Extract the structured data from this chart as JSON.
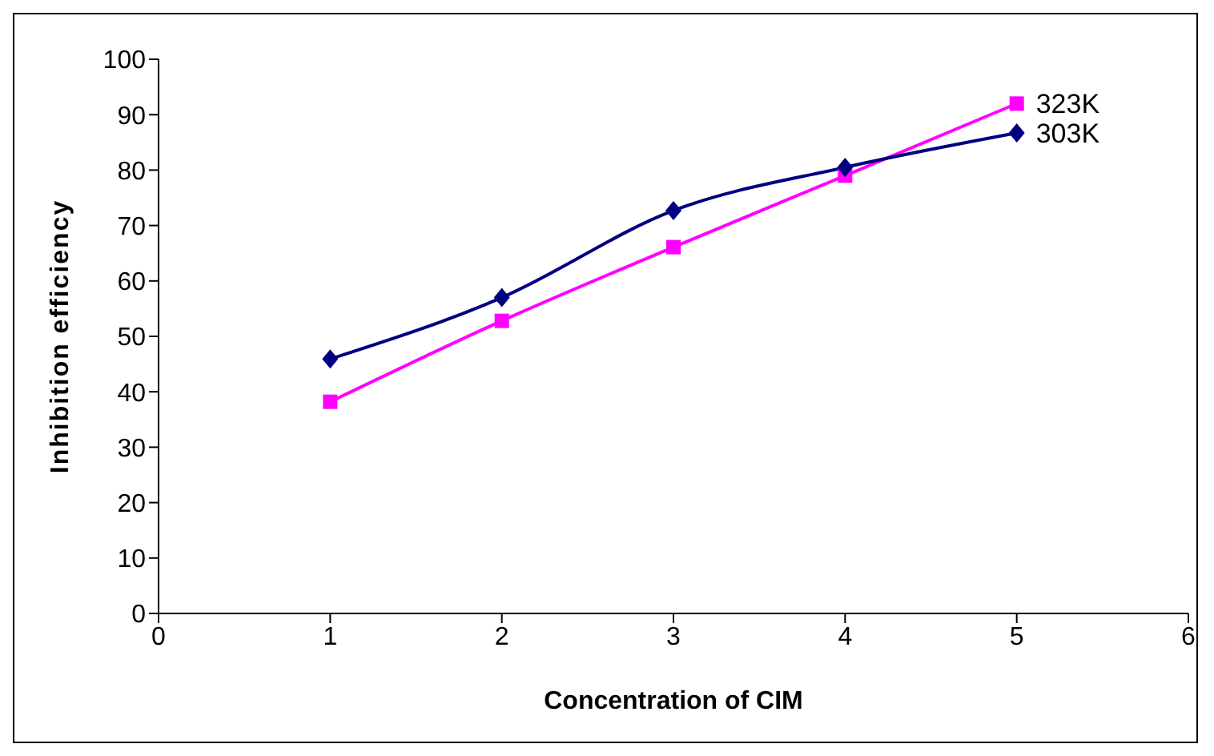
{
  "chart_data": {
    "type": "line",
    "xlabel": "Concentration of CIM",
    "ylabel": "Inhibition efficiency",
    "x": [
      1,
      2,
      3,
      4,
      5
    ],
    "series": [
      {
        "name": "323K",
        "color": "#ff00ff",
        "values": [
          38.2,
          52.8,
          66.1,
          79.0,
          92.0
        ],
        "marker": "square"
      },
      {
        "name": "303K",
        "color": "#000080",
        "values": [
          45.9,
          57.0,
          72.7,
          80.5,
          86.7
        ],
        "marker": "diamond"
      }
    ],
    "xlim": [
      0,
      6
    ],
    "xticks": [
      0,
      1,
      2,
      3,
      4,
      5,
      6
    ],
    "ylim": [
      0,
      100
    ],
    "yticks": [
      0,
      10,
      20,
      30,
      40,
      50,
      60,
      70,
      80,
      90,
      100
    ],
    "grid": false,
    "legend": false
  }
}
